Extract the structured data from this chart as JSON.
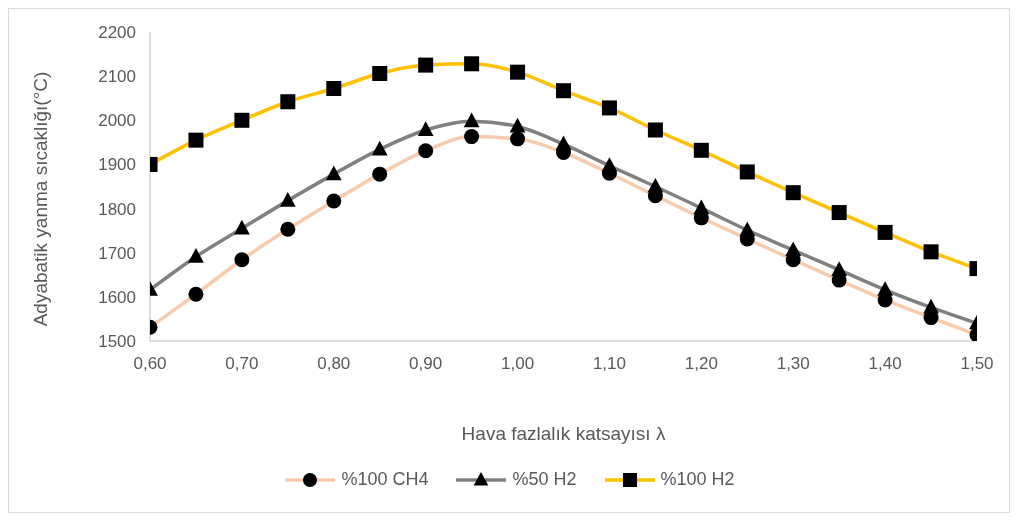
{
  "chart_data": {
    "type": "line",
    "xlabel": "Hava fazlalık katsayısı λ",
    "ylabel": "Adyabatik yanma sıcaklığı(°C)",
    "x": [
      0.6,
      0.65,
      0.7,
      0.75,
      0.8,
      0.85,
      0.9,
      0.95,
      1.0,
      1.05,
      1.1,
      1.15,
      1.2,
      1.25,
      1.3,
      1.35,
      1.4,
      1.45,
      1.5
    ],
    "series": [
      {
        "name": "%100 CH4",
        "color": "#f8cbad",
        "marker": "circle",
        "values": [
          1531,
          1606,
          1684,
          1753,
          1817,
          1878,
          1931,
          1963,
          1958,
          1927,
          1880,
          1829,
          1779,
          1731,
          1684,
          1638,
          1593,
          1553,
          1514
        ]
      },
      {
        "name": "%50 H2",
        "color": "#808080",
        "marker": "triangle",
        "values": [
          1616,
          1691,
          1755,
          1818,
          1878,
          1934,
          1978,
          1998,
          1986,
          1946,
          1897,
          1850,
          1801,
          1751,
          1706,
          1661,
          1616,
          1576,
          1540
        ]
      },
      {
        "name": "%100 H2",
        "color": "#ffc000",
        "marker": "square",
        "values": [
          1900,
          1955,
          2000,
          2042,
          2072,
          2106,
          2125,
          2128,
          2109,
          2067,
          2028,
          1978,
          1932,
          1883,
          1836,
          1791,
          1746,
          1702,
          1664
        ]
      }
    ],
    "xlim": [
      0.6,
      1.5
    ],
    "xticks": [
      {
        "value": 0.6,
        "label": "0,60"
      },
      {
        "value": 0.7,
        "label": "0,70"
      },
      {
        "value": 0.8,
        "label": "0,80"
      },
      {
        "value": 0.9,
        "label": "0,90"
      },
      {
        "value": 1.0,
        "label": "1,00"
      },
      {
        "value": 1.1,
        "label": "1,10"
      },
      {
        "value": 1.2,
        "label": "1,20"
      },
      {
        "value": 1.3,
        "label": "1,30"
      },
      {
        "value": 1.4,
        "label": "1,40"
      },
      {
        "value": 1.5,
        "label": "1,50"
      }
    ],
    "ylim": [
      1500,
      2200
    ],
    "yticks": [
      1500,
      1600,
      1700,
      1800,
      1900,
      2000,
      2100,
      2200
    ],
    "grid": false,
    "legend": "bottom",
    "line_style": "solid"
  }
}
